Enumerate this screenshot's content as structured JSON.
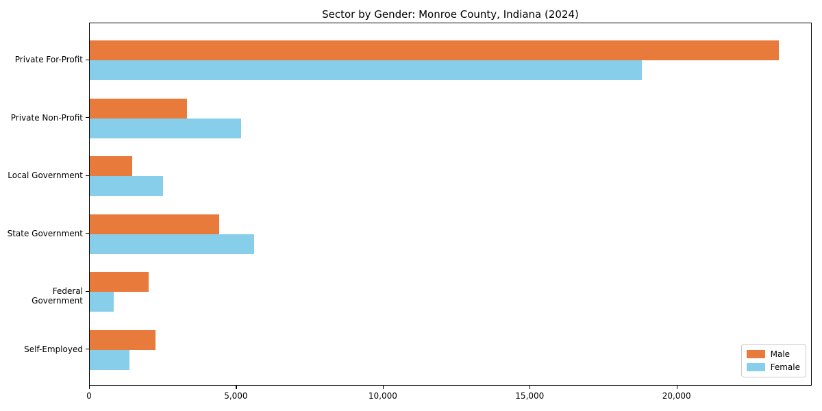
{
  "chart_data": {
    "type": "bar",
    "orientation": "horizontal",
    "title": "Sector by Gender: Monroe County, Indiana (2024)",
    "categories": [
      "Private For-Profit",
      "Private Non-Profit",
      "Local Government",
      "State Government",
      "Federal Government",
      "Self-Employed"
    ],
    "series": [
      {
        "name": "Male",
        "color": "#e87a3c",
        "values": [
          23450,
          3300,
          1450,
          4400,
          2000,
          2230
        ]
      },
      {
        "name": "Female",
        "color": "#87ceeb",
        "values": [
          18800,
          5150,
          2500,
          5600,
          820,
          1340
        ]
      }
    ],
    "xlabel": "",
    "ylabel": "",
    "xlim": [
      0,
      24600
    ],
    "xticks": [
      0,
      5000,
      10000,
      15000,
      20000
    ],
    "xtick_labels": [
      "0",
      "5,000",
      "10,000",
      "15,000",
      "20,000"
    ],
    "grid": false,
    "legend_position": "lower right"
  }
}
